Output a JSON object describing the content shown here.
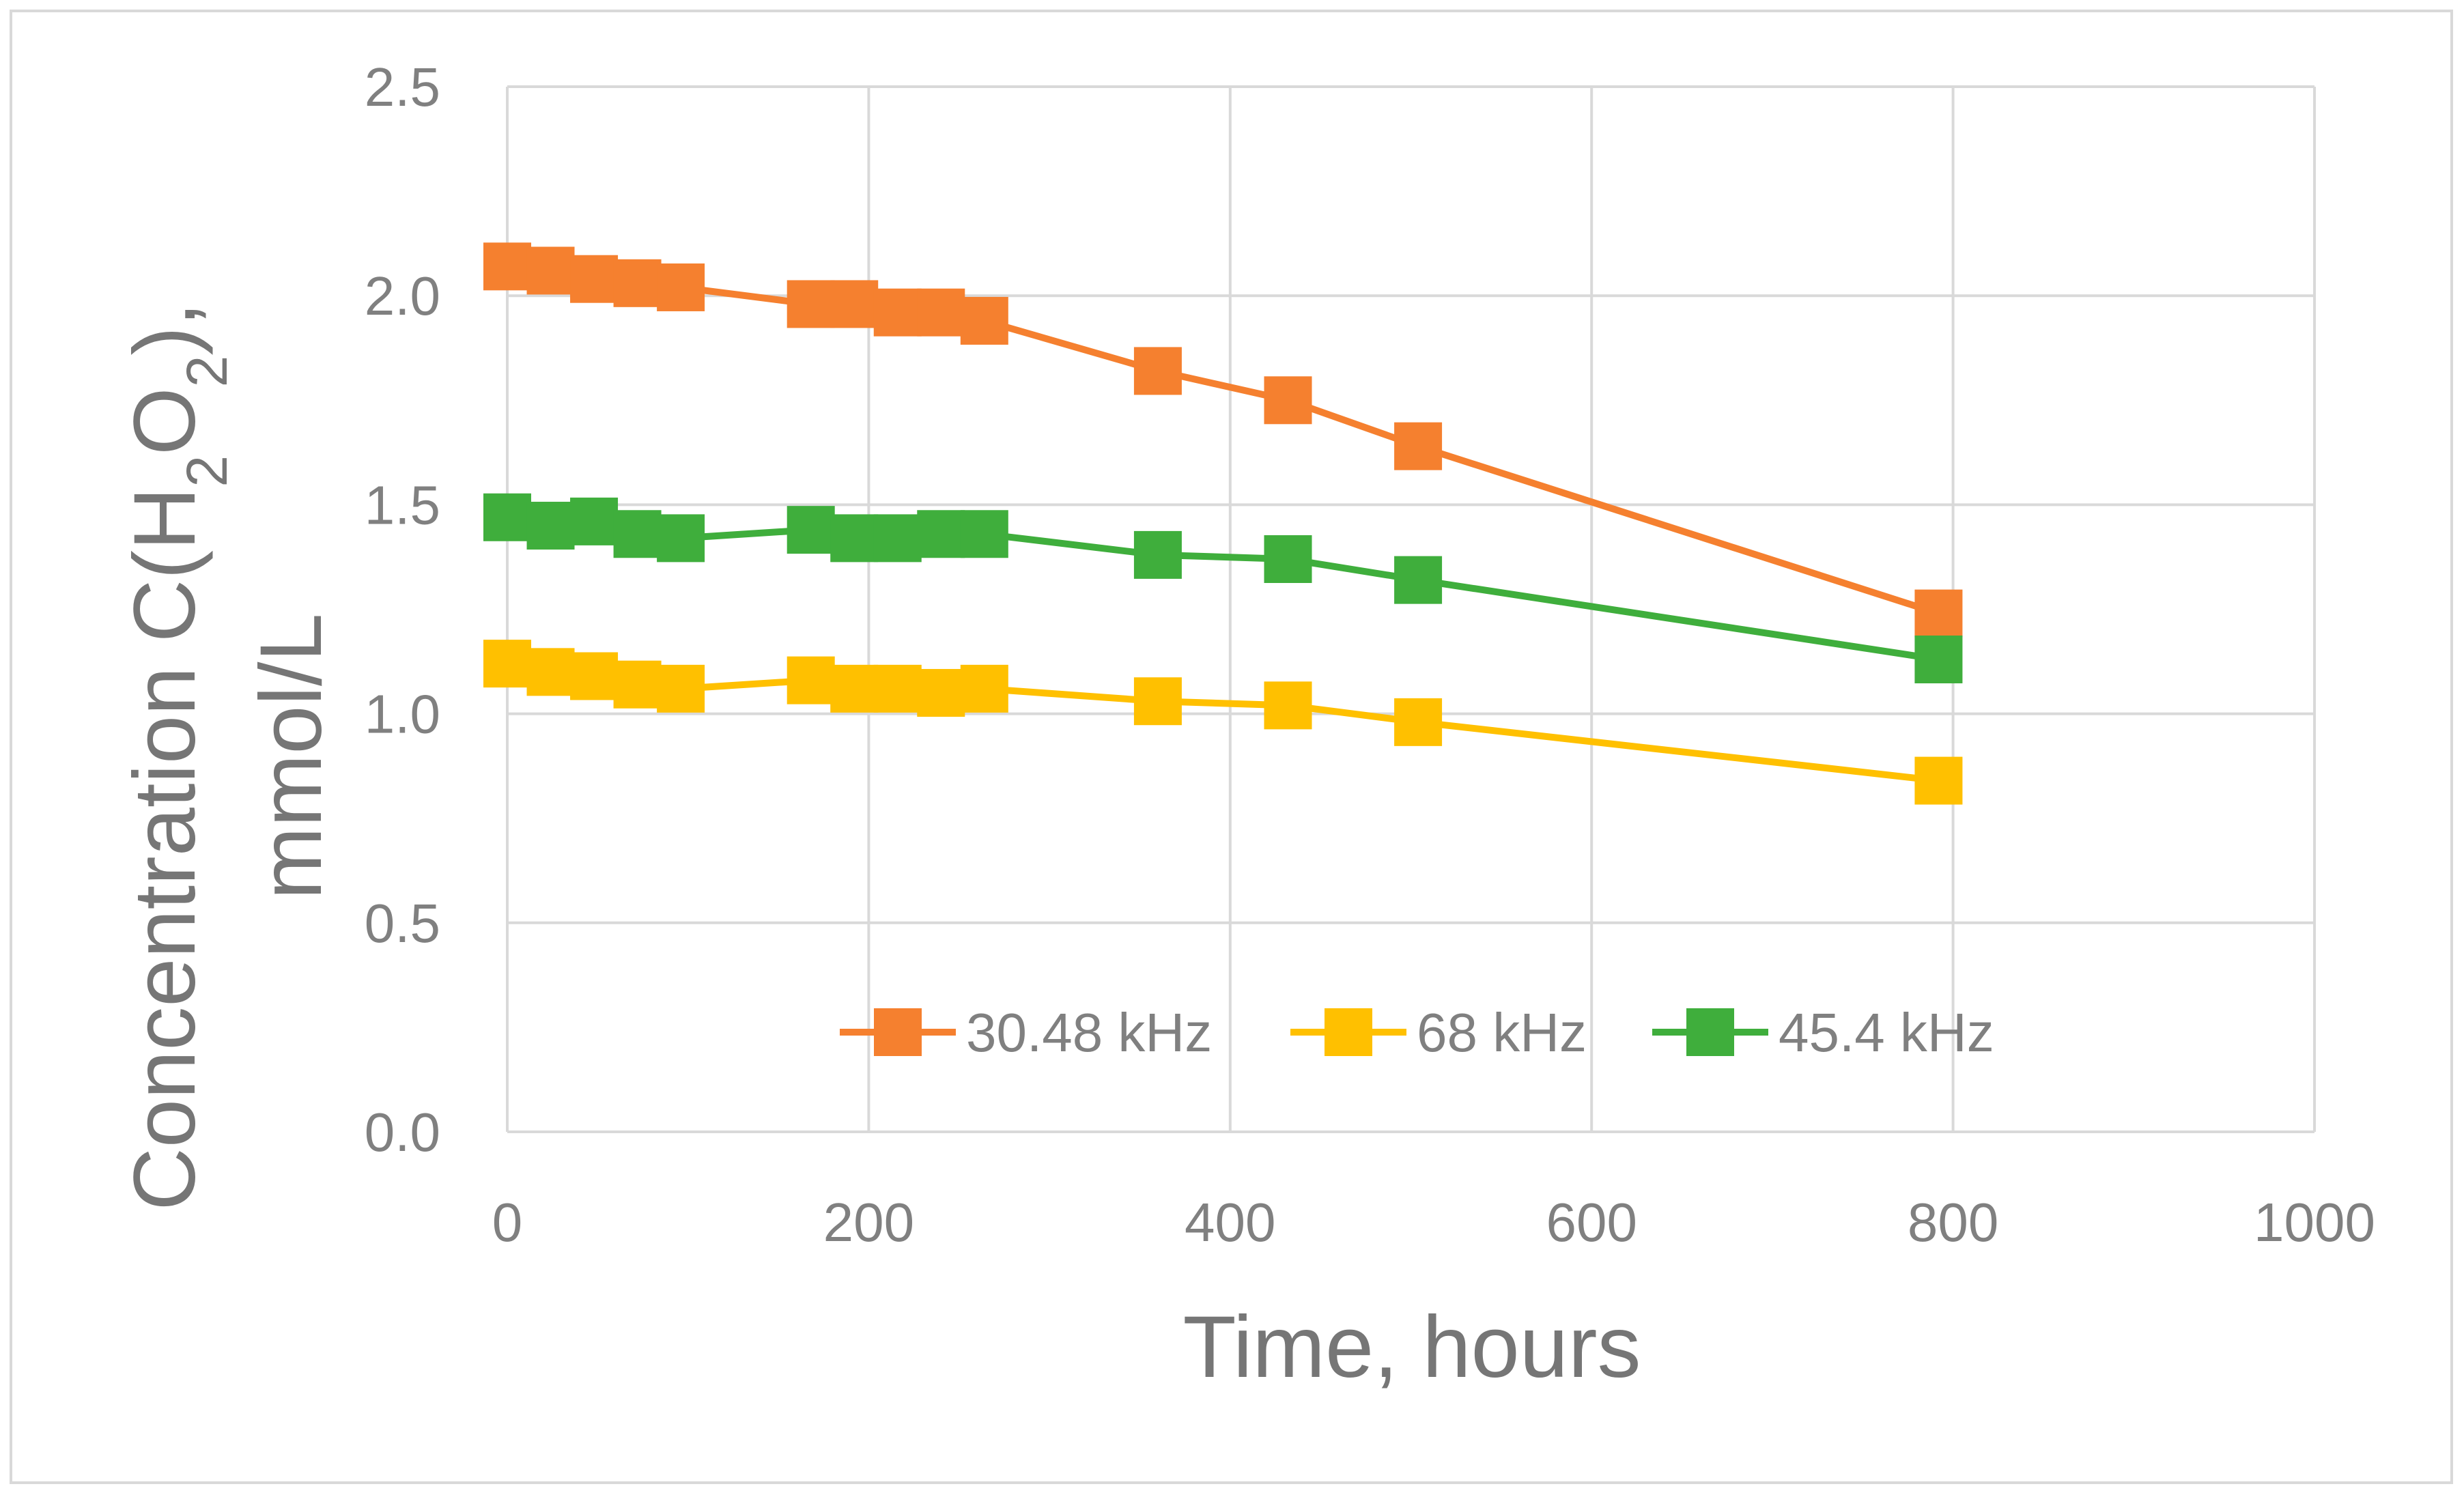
{
  "chart_data": {
    "type": "line",
    "title": "",
    "xlabel": "Time, hours",
    "ylabel": {
      "prefix": "Concentration C(H",
      "sub1": "2",
      "mid": "O",
      "sub2": "2",
      "suffix": "),",
      "line2": "mmol/L"
    },
    "xlim": [
      0,
      1000
    ],
    "ylim": [
      0,
      2.5
    ],
    "x_ticks": [
      "0",
      "200",
      "400",
      "600",
      "800",
      "1000"
    ],
    "y_ticks": [
      "0.0",
      "0.5",
      "1.0",
      "1.5",
      "2.0",
      "2.5"
    ],
    "grid": true,
    "legend_position": "inside-bottom",
    "series": [
      {
        "name": "30.48 kHz",
        "color": "#f5802f",
        "marker": "square",
        "points": [
          [
            0,
            2.07
          ],
          [
            24,
            2.06
          ],
          [
            48,
            2.04
          ],
          [
            72,
            2.03
          ],
          [
            96,
            2.02
          ],
          [
            168,
            1.98
          ],
          [
            192,
            1.98
          ],
          [
            216,
            1.96
          ],
          [
            240,
            1.96
          ],
          [
            264,
            1.94
          ],
          [
            360,
            1.82
          ],
          [
            432,
            1.75
          ],
          [
            504,
            1.64
          ],
          [
            792,
            1.24
          ]
        ]
      },
      {
        "name": "68 kHz",
        "color": "#ffc000",
        "marker": "square",
        "points": [
          [
            0,
            1.12
          ],
          [
            24,
            1.1
          ],
          [
            48,
            1.09
          ],
          [
            72,
            1.07
          ],
          [
            96,
            1.06
          ],
          [
            168,
            1.08
          ],
          [
            192,
            1.06
          ],
          [
            216,
            1.06
          ],
          [
            240,
            1.05
          ],
          [
            264,
            1.06
          ],
          [
            360,
            1.03
          ],
          [
            432,
            1.02
          ],
          [
            504,
            0.98
          ],
          [
            792,
            0.84
          ]
        ]
      },
      {
        "name": "45.4 kHz",
        "color": "#3fae3c",
        "marker": "square",
        "points": [
          [
            0,
            1.47
          ],
          [
            24,
            1.45
          ],
          [
            48,
            1.46
          ],
          [
            72,
            1.43
          ],
          [
            96,
            1.42
          ],
          [
            168,
            1.44
          ],
          [
            192,
            1.42
          ],
          [
            216,
            1.42
          ],
          [
            240,
            1.43
          ],
          [
            264,
            1.43
          ],
          [
            360,
            1.38
          ],
          [
            432,
            1.37
          ],
          [
            504,
            1.32
          ],
          [
            792,
            1.13
          ]
        ]
      }
    ]
  }
}
